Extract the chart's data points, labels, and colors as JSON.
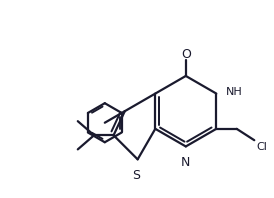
{
  "bg_color": "#ffffff",
  "line_color": "#1a1a2e",
  "line_width": 1.6,
  "figsize": [
    2.74,
    1.98
  ],
  "dpi": 100,
  "xlim": [
    0,
    10
  ],
  "ylim": [
    0,
    7.2
  ]
}
